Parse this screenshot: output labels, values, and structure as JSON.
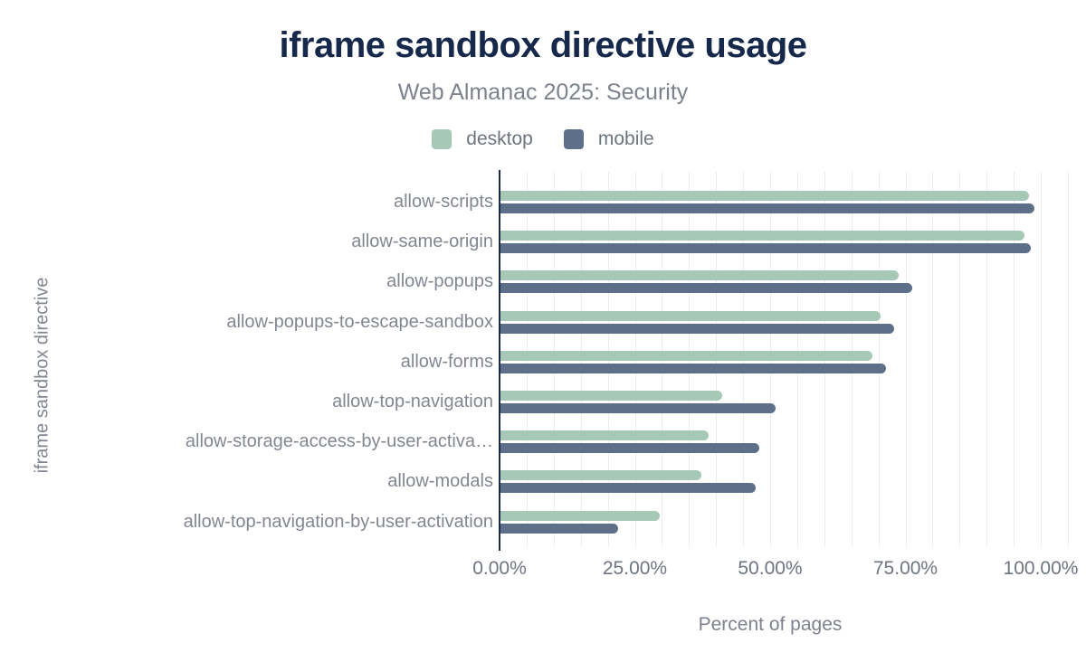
{
  "title": "iframe sandbox directive usage",
  "subtitle": "Web Almanac 2025: Security",
  "legend": {
    "items": [
      {
        "label": "desktop",
        "color": "#a5c9b6"
      },
      {
        "label": "mobile",
        "color": "#5e7089"
      }
    ]
  },
  "chart_data": {
    "type": "bar",
    "orientation": "horizontal",
    "title": "iframe sandbox directive usage",
    "subtitle": "Web Almanac 2025: Security",
    "xlabel": "Percent of pages",
    "ylabel": "iframe sandbox directive",
    "xlim": [
      0,
      100
    ],
    "xtick_labels": [
      "0.00%",
      "25.00%",
      "50.00%",
      "75.00%",
      "100.00%"
    ],
    "grid": {
      "vertical": true,
      "minor_step_percent": 5,
      "horizontal": false
    },
    "legend_position": "top",
    "categories": [
      "allow-scripts",
      "allow-same-origin",
      "allow-popups",
      "allow-popups-to-escape-sandbox",
      "allow-forms",
      "allow-top-navigation",
      "allow-storage-access-by-user-activa…",
      "allow-modals",
      "allow-top-navigation-by-user-activation"
    ],
    "series": [
      {
        "name": "desktop",
        "color": "#a5c9b6",
        "values": [
          97.7,
          96.8,
          73.5,
          70.3,
          68.8,
          41.0,
          38.4,
          37.1,
          29.4
        ]
      },
      {
        "name": "mobile",
        "color": "#5e7089",
        "values": [
          98.6,
          98.0,
          76.1,
          72.7,
          71.3,
          50.9,
          47.9,
          47.2,
          21.7
        ]
      }
    ]
  },
  "colors": {
    "title_text": "#16294b",
    "subtitle_text": "#7d828c",
    "axis_line": "#1b2b4b",
    "gridline": "#ececef",
    "category_text": "#82878f",
    "tick_text": "#6f7580"
  }
}
